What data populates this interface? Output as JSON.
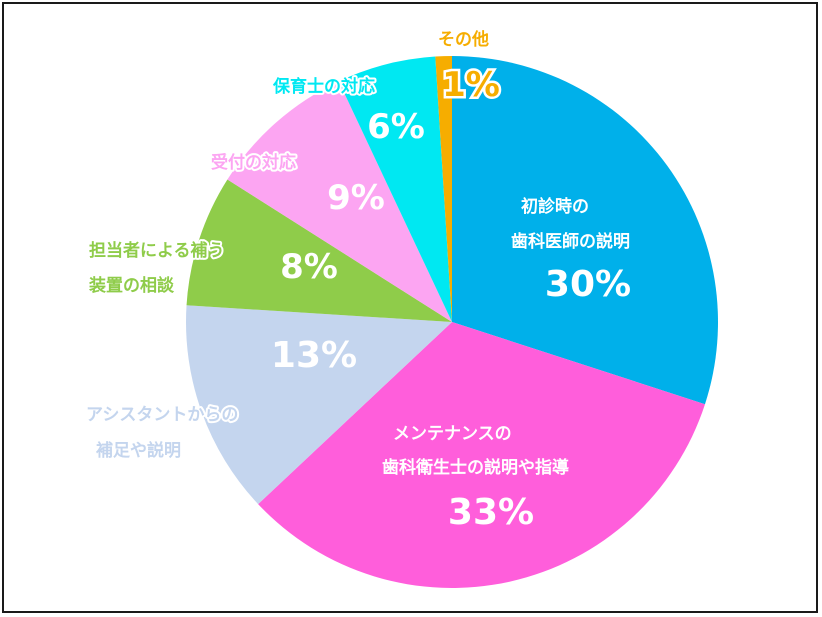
{
  "chart_data": {
    "type": "pie",
    "title": "",
    "slices": [
      {
        "label_lines": [
          "初診時の",
          "歯科医師の説明"
        ],
        "value": 30,
        "pct_label": "30%",
        "color": "#00b0ea"
      },
      {
        "label_lines": [
          "メンテナンスの",
          "歯科衛生士の説明や指導"
        ],
        "value": 33,
        "pct_label": "33%",
        "color": "#ff5edb"
      },
      {
        "label_lines": [
          "アシスタントからの",
          "補足や説明"
        ],
        "value": 13,
        "pct_label": "13%",
        "color": "#c4d5ee"
      },
      {
        "label_lines": [
          "担当者による補う",
          "装置の相談"
        ],
        "value": 8,
        "pct_label": "8%",
        "color": "#8fcc4a"
      },
      {
        "label_lines": [
          "受付の対応"
        ],
        "value": 9,
        "pct_label": "9%",
        "color": "#fca5f2"
      },
      {
        "label_lines": [
          "保育士の対応"
        ],
        "value": 6,
        "pct_label": "6%",
        "color": "#00e8f2"
      },
      {
        "label_lines": [
          "その他"
        ],
        "value": 1,
        "pct_label": "1%",
        "color": "#f6ad00"
      }
    ]
  }
}
